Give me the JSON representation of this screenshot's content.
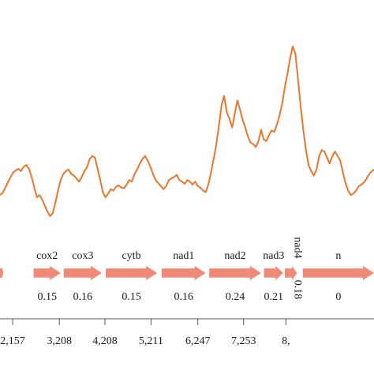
{
  "colors": {
    "line": "#e8762b",
    "arrow": "#f08a78",
    "axis": "#555555",
    "text": "#1a1a1a"
  },
  "chart_data": {
    "type": "line",
    "title": "",
    "xlabel": "",
    "ylabel": "",
    "xlim": [
      1550,
      8640
    ],
    "ylim": [
      0.05,
      0.34
    ],
    "x": [
      1550,
      1600,
      1650,
      1700,
      1750,
      1800,
      1850,
      1900,
      1950,
      2000,
      2050,
      2100,
      2150,
      2200,
      2250,
      2300,
      2350,
      2400,
      2450,
      2500,
      2550,
      2600,
      2650,
      2700,
      2750,
      2800,
      2850,
      2900,
      2950,
      3000,
      3050,
      3100,
      3150,
      3200,
      3250,
      3300,
      3350,
      3400,
      3450,
      3500,
      3550,
      3600,
      3650,
      3700,
      3750,
      3800,
      3850,
      3900,
      3950,
      4000,
      4050,
      4100,
      4150,
      4200,
      4250,
      4300,
      4350,
      4400,
      4450,
      4500,
      4550,
      4600,
      4650,
      4700,
      4750,
      4800,
      4850,
      4900,
      4950,
      5000,
      5050,
      5100,
      5150,
      5200,
      5250,
      5300,
      5350,
      5400,
      5450,
      5500,
      5550,
      5600,
      5650,
      5700,
      5750,
      5800,
      5850,
      5900,
      5950,
      6000,
      6050,
      6100,
      6150,
      6200,
      6250,
      6300,
      6350,
      6400,
      6450,
      6500,
      6550,
      6600,
      6650,
      6700,
      6750,
      6800,
      6850,
      6900,
      6950,
      7000,
      7050,
      7100,
      7150,
      7200,
      7250,
      7300,
      7350,
      7400,
      7450,
      7500,
      7550,
      7600,
      7650,
      7700,
      7750,
      7800,
      7850,
      7900,
      7950,
      8000,
      8050,
      8100,
      8150,
      8200,
      8250,
      8300,
      8350,
      8400,
      8450,
      8500,
      8550,
      8600,
      8640
    ],
    "series": [
      {
        "values": [
          0.118,
          0.121,
          0.128,
          0.135,
          0.142,
          0.148,
          0.151,
          0.153,
          0.15,
          0.156,
          0.158,
          0.153,
          0.142,
          0.128,
          0.115,
          0.118,
          0.112,
          0.104,
          0.096,
          0.09,
          0.094,
          0.108,
          0.124,
          0.138,
          0.146,
          0.15,
          0.152,
          0.146,
          0.144,
          0.14,
          0.136,
          0.142,
          0.15,
          0.155,
          0.166,
          0.17,
          0.168,
          0.153,
          0.138,
          0.122,
          0.115,
          0.12,
          0.126,
          0.124,
          0.129,
          0.131,
          0.128,
          0.127,
          0.132,
          0.138,
          0.136,
          0.146,
          0.152,
          0.16,
          0.166,
          0.17,
          0.164,
          0.156,
          0.146,
          0.138,
          0.134,
          0.13,
          0.126,
          0.13,
          0.138,
          0.14,
          0.142,
          0.145,
          0.138,
          0.136,
          0.133,
          0.138,
          0.136,
          0.132,
          0.136,
          0.13,
          0.128,
          0.124,
          0.122,
          0.132,
          0.148,
          0.166,
          0.185,
          0.21,
          0.238,
          0.25,
          0.228,
          0.22,
          0.208,
          0.226,
          0.244,
          0.232,
          0.218,
          0.208,
          0.196,
          0.188,
          0.186,
          0.182,
          0.19,
          0.205,
          0.192,
          0.19,
          0.198,
          0.204,
          0.202,
          0.212,
          0.224,
          0.24,
          0.262,
          0.28,
          0.3,
          0.316,
          0.306,
          0.272,
          0.236,
          0.205,
          0.178,
          0.158,
          0.15,
          0.144,
          0.152,
          0.17,
          0.178,
          0.176,
          0.168,
          0.16,
          0.17,
          0.176,
          0.17,
          0.164,
          0.148,
          0.134,
          0.124,
          0.118,
          0.12,
          0.124,
          0.13,
          0.132,
          0.135,
          0.14,
          0.146,
          0.15,
          0.152
        ]
      }
    ],
    "genes": [
      {
        "name": "",
        "start": 1550,
        "end": 1610,
        "value": ""
      },
      {
        "name": "cox2",
        "start": 2185,
        "end": 2700,
        "value": "0.15"
      },
      {
        "name": "cox3",
        "start": 2758,
        "end": 3480,
        "value": "0.16"
      },
      {
        "name": "cytb",
        "start": 3555,
        "end": 4530,
        "value": "0.15"
      },
      {
        "name": "nad1",
        "start": 4615,
        "end": 5450,
        "value": "0.16"
      },
      {
        "name": "nad2",
        "start": 5515,
        "end": 6500,
        "value": "0.24"
      },
      {
        "name": "nad3",
        "start": 6555,
        "end": 6920,
        "value": "0.21"
      },
      {
        "name": "nad4",
        "start": 6950,
        "end": 7180,
        "value": "0.18"
      },
      {
        "name": "n",
        "start": 7290,
        "end": 8640,
        "value": "0"
      }
    ],
    "x_ticks": [
      {
        "value": 1790,
        "label": "2,157"
      },
      {
        "value": 2675,
        "label": "3,208"
      },
      {
        "value": 3540,
        "label": "4,208"
      },
      {
        "value": 4413,
        "label": "5,211"
      },
      {
        "value": 5300,
        "label": "6,247"
      },
      {
        "value": 6168,
        "label": "7,253"
      },
      {
        "value": 6970,
        "label": "8,"
      }
    ]
  }
}
